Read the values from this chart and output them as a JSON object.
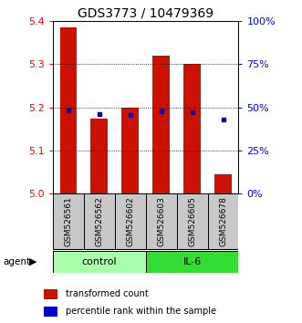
{
  "title": "GDS3773 / 10479369",
  "samples": [
    "GSM526561",
    "GSM526562",
    "GSM526602",
    "GSM526603",
    "GSM526605",
    "GSM526678"
  ],
  "red_values": [
    5.385,
    5.175,
    5.2,
    5.32,
    5.3,
    5.045
  ],
  "blue_values": [
    5.193,
    5.185,
    5.183,
    5.19,
    5.188,
    5.172
  ],
  "blue_visible": [
    true,
    true,
    true,
    true,
    true,
    true
  ],
  "y_min": 5.0,
  "y_max": 5.4,
  "y_ticks_red": [
    5.0,
    5.1,
    5.2,
    5.3,
    5.4
  ],
  "y_ticks_blue_vals": [
    0,
    25,
    50,
    75,
    100
  ],
  "y_ticks_blue_labels": [
    "0%",
    "25%",
    "50%",
    "75%",
    "100%"
  ],
  "groups": [
    {
      "label": "control",
      "indices": [
        0,
        1,
        2
      ],
      "color": "#aaffaa"
    },
    {
      "label": "IL-6",
      "indices": [
        3,
        4,
        5
      ],
      "color": "#33dd33"
    }
  ],
  "bar_color_red": "#CC1100",
  "bar_color_blue": "#0000CC",
  "bar_width": 0.55,
  "legend_red": "transformed count",
  "legend_blue": "percentile rank within the sample",
  "title_fontsize": 10,
  "tick_fontsize": 8,
  "sample_fontsize": 6.5,
  "group_fontsize": 8,
  "legend_fontsize": 7
}
